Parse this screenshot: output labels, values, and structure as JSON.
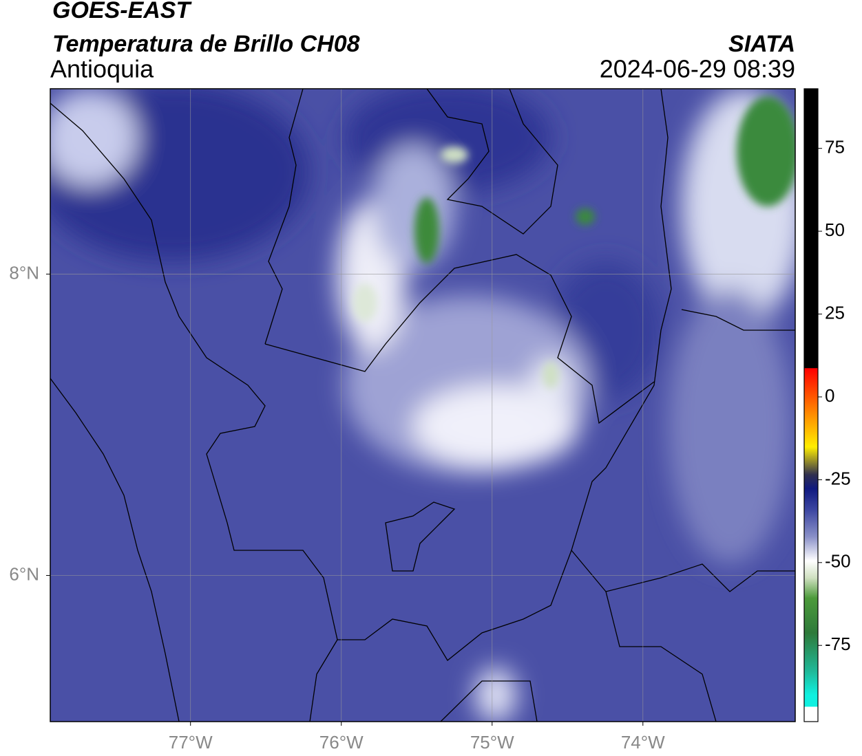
{
  "header": {
    "title": "GOES-EAST",
    "subtitle": "Temperatura de Brillo CH08",
    "region": "Antioquia",
    "source": "SIATA",
    "datetime": "2024-06-29 08:39"
  },
  "map": {
    "xlim": [
      -77.93,
      -72.99
    ],
    "ylim": [
      5.03,
      9.23
    ],
    "xticks": [
      {
        "value": -77,
        "label": "77°W"
      },
      {
        "value": -76,
        "label": "76°W"
      },
      {
        "value": -75,
        "label": "75°W"
      },
      {
        "value": -74,
        "label": "74°W"
      }
    ],
    "yticks": [
      {
        "value": 8,
        "label": "8°N"
      },
      {
        "value": 6,
        "label": "6°N"
      }
    ],
    "grid": true
  },
  "colorbar": {
    "lim": [
      -98,
      93
    ],
    "ticks": [
      75,
      50,
      25,
      0,
      -25,
      -50,
      -75
    ]
  }
}
